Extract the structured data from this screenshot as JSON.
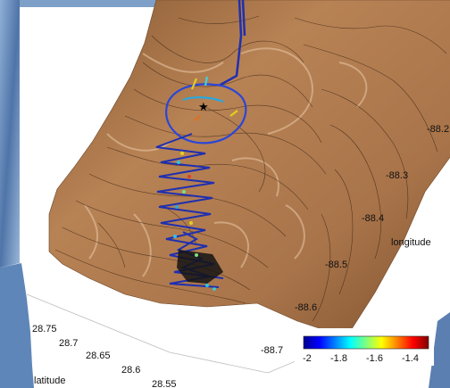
{
  "chart_data": {
    "type": "surface-3d",
    "axes": {
      "longitude": {
        "label": "longitude",
        "ticks": [
          "-88.2",
          "-88.3",
          "-88.4",
          "-88.5",
          "-88.6",
          "-88.7"
        ],
        "range": [
          -88.75,
          -88.15
        ]
      },
      "latitude": {
        "label": "latitude",
        "ticks": [
          "28.75",
          "28.7",
          "28.65",
          "28.6",
          "28.55"
        ],
        "range": [
          28.53,
          28.77
        ]
      }
    },
    "colorbar": {
      "ticks": [
        "-2",
        "-1.8",
        "-1.6",
        "-1.4"
      ],
      "range": [
        -2,
        -1.3
      ],
      "colormap": "jet"
    },
    "colors": {
      "terrain": "#a8764c",
      "terrain_light": "#c8956a",
      "contour": "#3a2414",
      "track": "#1f2fb0",
      "sky": "#6a90c0"
    },
    "track": {
      "marker": "black-star"
    }
  }
}
